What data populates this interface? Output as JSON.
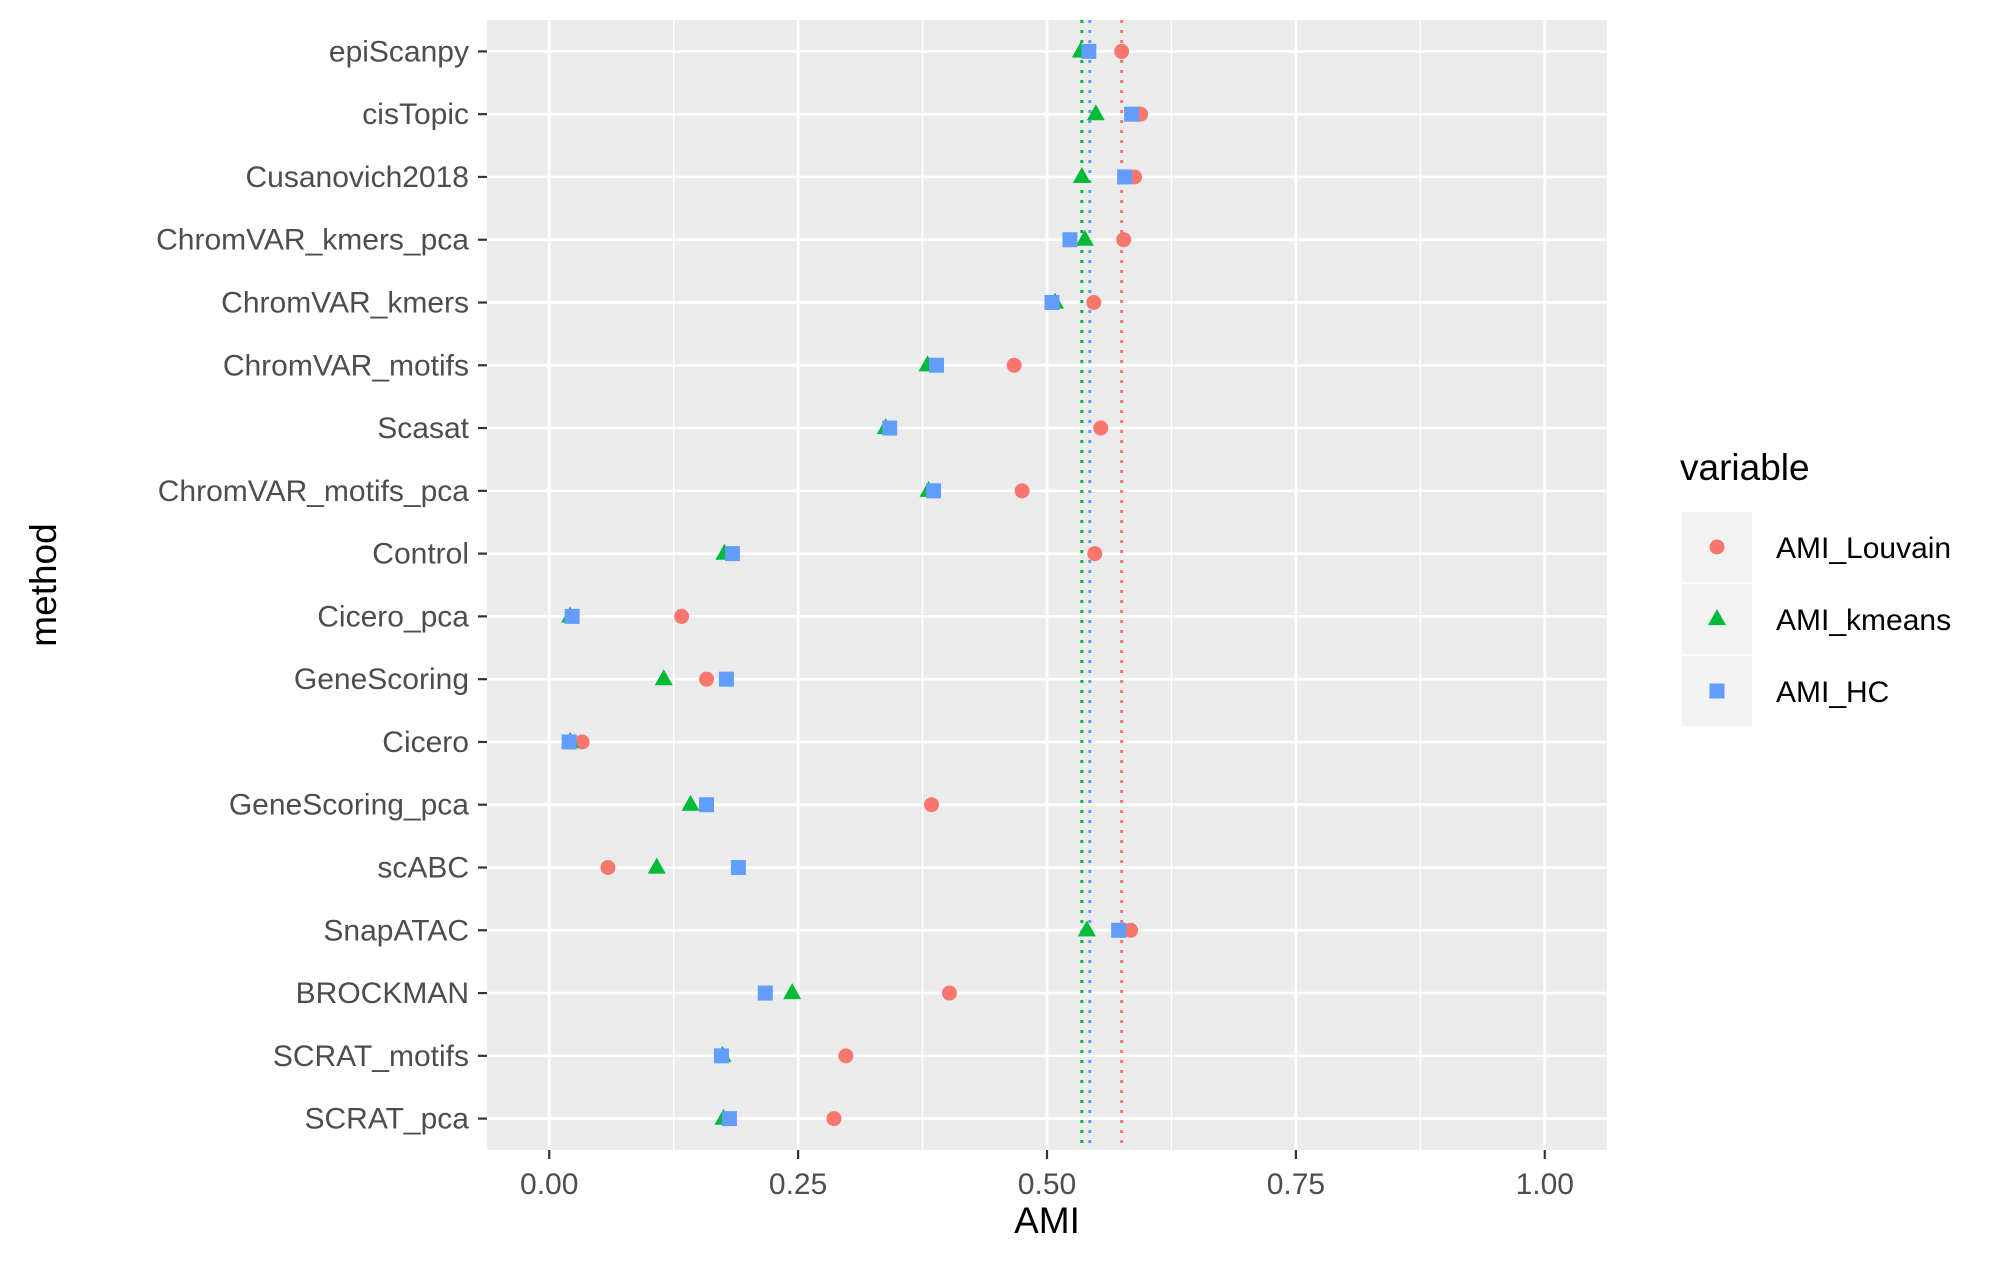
{
  "chart_data": {
    "type": "scatter",
    "orientation": "horizontal",
    "title": "",
    "xlabel": "AMI",
    "ylabel": "method",
    "xlim": [
      -0.0625,
      1.0625
    ],
    "x_ticks": [
      "0.00",
      "0.25",
      "0.50",
      "0.75",
      "1.00"
    ],
    "x_tick_values": [
      0,
      0.25,
      0.5,
      0.75,
      1.0
    ],
    "grid": true,
    "legend_position": "right",
    "legend_title": "variable",
    "categories": [
      "epiScanpy",
      "cisTopic",
      "Cusanovich2018",
      "ChromVAR_kmers_pca",
      "ChromVAR_kmers",
      "ChromVAR_motifs",
      "Scasat",
      "ChromVAR_motifs_pca",
      "Control",
      "Cicero_pca",
      "GeneScoring",
      "Cicero",
      "GeneScoring_pca",
      "scABC",
      "SnapATAC",
      "BROCKMAN",
      "SCRAT_motifs",
      "SCRAT_pca"
    ],
    "series": [
      {
        "name": "AMI_Louvain",
        "color": "#F8766D",
        "marker": "circle",
        "values": [
          0.575,
          0.594,
          0.588,
          0.577,
          0.547,
          0.467,
          0.554,
          0.475,
          0.548,
          0.133,
          0.158,
          0.033,
          0.384,
          0.059,
          0.584,
          0.402,
          0.298,
          0.286
        ],
        "reference_line": 0.575
      },
      {
        "name": "AMI_kmeans",
        "color": "#00BA38",
        "marker": "triangle",
        "values": [
          0.534,
          0.549,
          0.535,
          0.538,
          0.508,
          0.38,
          0.338,
          0.381,
          0.176,
          0.021,
          0.115,
          0.021,
          0.142,
          0.108,
          0.54,
          0.244,
          0.174,
          0.175
        ],
        "reference_line": 0.535
      },
      {
        "name": "AMI_HC",
        "color": "#619CFF",
        "marker": "square",
        "values": [
          0.542,
          0.585,
          0.578,
          0.523,
          0.505,
          0.389,
          0.342,
          0.386,
          0.184,
          0.023,
          0.178,
          0.02,
          0.158,
          0.19,
          0.572,
          0.217,
          0.173,
          0.181
        ],
        "reference_line": 0.543
      }
    ]
  }
}
